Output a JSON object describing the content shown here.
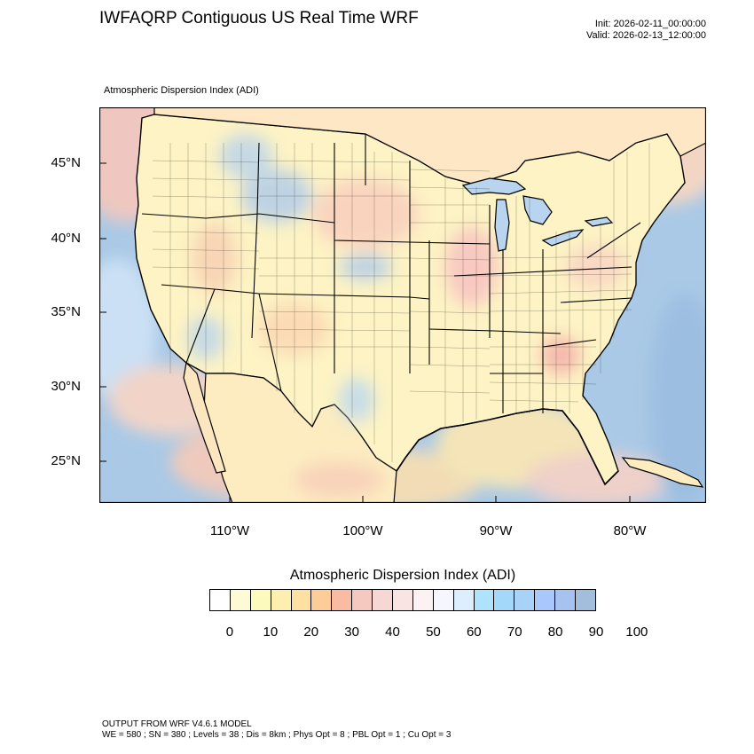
{
  "title": "IWFAQRP Contiguous US Real Time WRF",
  "run_info": {
    "init": "Init: 2026-02-11_00:00:00",
    "valid": "Valid: 2026-02-13_12:00:00"
  },
  "field_name": "Atmospheric Dispersion Index   (ADI)",
  "map": {
    "lat_labels": [
      "45°N",
      "40°N",
      "35°N",
      "30°N",
      "25°N"
    ],
    "lon_labels": [
      "110°W",
      "100°W",
      "90°W",
      "80°W"
    ],
    "land_base_color": "#fdf6c6",
    "ocean_color": "#a9c9e6"
  },
  "colorbar": {
    "title": "Atmospheric Dispersion Index  (ADI)",
    "colors": [
      "#ffffff",
      "#fdfbd6",
      "#fcfabd",
      "#fcefaf",
      "#fde0a2",
      "#fccd98",
      "#f9bba2",
      "#f5c8c0",
      "#f7d7d3",
      "#f9e4e3",
      "#fcf2f3",
      "#f6f6ff",
      "#ddeefe",
      "#aee3fb",
      "#a3d8fa",
      "#a9d2f8",
      "#aac7fc",
      "#a6c3f0",
      "#a3bedd"
    ],
    "labels": [
      "0",
      "10",
      "20",
      "30",
      "40",
      "50",
      "60",
      "70",
      "80",
      "90",
      "100"
    ]
  },
  "footer": {
    "line1": "OUTPUT FROM WRF V4.6.1 MODEL",
    "line2": "WE = 580 ; SN = 380 ; Levels = 38 ; Dis = 8km ; Phys Opt = 8 ; PBL Opt = 1 ; Cu Opt = 3"
  }
}
